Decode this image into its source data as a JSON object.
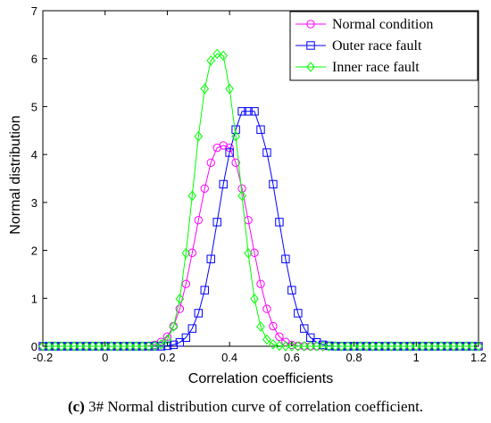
{
  "caption": {
    "letter": "(c)",
    "text": " 3# Normal distribution curve of correlation coefficient."
  },
  "chart_data": {
    "type": "line",
    "xlabel": "Correlation coefficients",
    "ylabel": "Normal distribution",
    "xlim": [
      -0.2,
      1.2
    ],
    "ylim": [
      0,
      7
    ],
    "xticks": [
      -0.2,
      0,
      0.2,
      0.4,
      0.6,
      0.8,
      1,
      1.2
    ],
    "yticks": [
      0,
      1,
      2,
      3,
      4,
      5,
      6,
      7
    ],
    "grid": false,
    "legend_position": "top-right",
    "x": [
      -0.2,
      -0.18,
      -0.16,
      -0.14,
      -0.12,
      -0.1,
      -0.08,
      -0.06,
      -0.04,
      -0.02,
      0,
      0.02,
      0.04,
      0.06,
      0.08,
      0.1,
      0.12,
      0.14,
      0.16,
      0.18,
      0.2,
      0.22,
      0.24,
      0.26,
      0.28,
      0.3,
      0.32,
      0.34,
      0.36,
      0.38,
      0.4,
      0.42,
      0.44,
      0.46,
      0.48,
      0.5,
      0.52,
      0.54,
      0.56,
      0.58,
      0.6,
      0.62,
      0.64,
      0.66,
      0.68,
      0.7,
      0.72,
      0.74,
      0.76,
      0.78,
      0.8,
      0.82,
      0.84,
      0.86,
      0.88,
      0.9,
      0.92,
      0.94,
      0.96,
      0.98,
      1,
      1.02,
      1.04,
      1.06,
      1.08,
      1.1,
      1.12,
      1.14,
      1.16,
      1.18,
      1.2
    ],
    "series": [
      {
        "name": "Normal condition",
        "color": "#ff00ff",
        "marker": "circle",
        "values": [
          0,
          0,
          0,
          0,
          0,
          0,
          0,
          0,
          0,
          0,
          0,
          0,
          0,
          0,
          0,
          0,
          0,
          0.01,
          0.03,
          0.09,
          0.2,
          0.42,
          0.78,
          1.3,
          1.95,
          2.63,
          3.29,
          3.83,
          4.14,
          4.19,
          4.14,
          3.83,
          3.29,
          2.63,
          1.95,
          1.3,
          0.78,
          0.42,
          0.2,
          0.09,
          0.03,
          0.01,
          0,
          0,
          0,
          0,
          0,
          0,
          0,
          0,
          0,
          0,
          0,
          0,
          0,
          0,
          0,
          0,
          0,
          0,
          0,
          0,
          0,
          0,
          0,
          0,
          0,
          0,
          0,
          0,
          0
        ]
      },
      {
        "name": "Outer race fault",
        "color": "#0000ff",
        "marker": "square",
        "values": [
          0,
          0,
          0,
          0,
          0,
          0,
          0,
          0,
          0,
          0,
          0,
          0,
          0,
          0,
          0,
          0,
          0,
          0,
          0,
          0,
          0.01,
          0.03,
          0.08,
          0.18,
          0.37,
          0.69,
          1.17,
          1.82,
          2.59,
          3.38,
          4.04,
          4.52,
          4.9,
          4.9,
          4.9,
          4.52,
          4.04,
          3.38,
          2.59,
          1.82,
          1.17,
          0.69,
          0.37,
          0.18,
          0.08,
          0.03,
          0.01,
          0,
          0,
          0,
          0,
          0,
          0,
          0,
          0,
          0,
          0,
          0,
          0,
          0,
          0,
          0,
          0,
          0,
          0,
          0,
          0,
          0,
          0,
          0,
          0
        ]
      },
      {
        "name": "Inner race fault",
        "color": "#00ff00",
        "marker": "diamond",
        "values": [
          0,
          0,
          0,
          0,
          0,
          0,
          0,
          0,
          0,
          0,
          0,
          0,
          0,
          0,
          0,
          0,
          0,
          0,
          0.01,
          0.04,
          0.14,
          0.41,
          0.99,
          1.94,
          3.14,
          4.38,
          5.37,
          5.96,
          6.1,
          6.06,
          5.37,
          4.38,
          3.14,
          1.94,
          0.99,
          0.41,
          0.14,
          0.04,
          0.01,
          0,
          0,
          0,
          0,
          0,
          0,
          0,
          0,
          0,
          0,
          0,
          0,
          0,
          0,
          0,
          0,
          0,
          0,
          0,
          0,
          0,
          0,
          0,
          0,
          0,
          0,
          0,
          0,
          0,
          0,
          0,
          0
        ]
      }
    ]
  }
}
